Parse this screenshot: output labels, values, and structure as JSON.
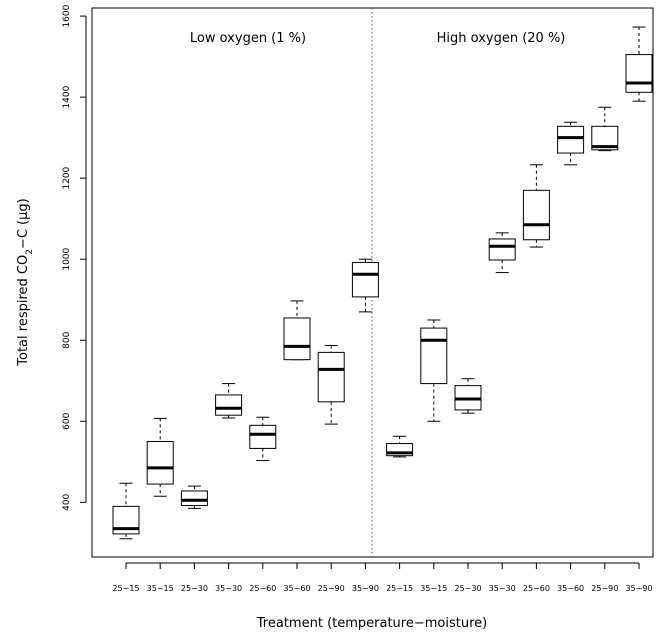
{
  "chart_data": {
    "type": "boxplot",
    "xlabel": "Treatment (temperature−moisture)",
    "ylabel_parts": [
      "Total respired CO",
      "2",
      "−C (μg)"
    ],
    "ylim": [
      265,
      1620
    ],
    "yticks": [
      400,
      600,
      800,
      1000,
      1200,
      1400,
      1600
    ],
    "grid": false,
    "panels": [
      {
        "label": "Low oxygen (1 %)"
      },
      {
        "label": "High oxygen (20 %)"
      }
    ],
    "categories": [
      "25−15",
      "35−15",
      "25−30",
      "35−30",
      "25−60",
      "35−60",
      "25−90",
      "35−90",
      "25−15",
      "35−15",
      "25−30",
      "35−30",
      "25−60",
      "35−60",
      "25−90",
      "35−90"
    ],
    "boxes": [
      {
        "group": "Low oxygen (1 %)",
        "treatment": "25−15",
        "min": 310,
        "q1": 322,
        "median": 335,
        "q3": 390,
        "max": 447
      },
      {
        "group": "Low oxygen (1 %)",
        "treatment": "35−15",
        "min": 415,
        "q1": 445,
        "median": 485,
        "q3": 550,
        "max": 607
      },
      {
        "group": "Low oxygen (1 %)",
        "treatment": "25−30",
        "min": 385,
        "q1": 392,
        "median": 405,
        "q3": 428,
        "max": 440
      },
      {
        "group": "Low oxygen (1 %)",
        "treatment": "35−30",
        "min": 608,
        "q1": 615,
        "median": 632,
        "q3": 665,
        "max": 693
      },
      {
        "group": "Low oxygen (1 %)",
        "treatment": "25−60",
        "min": 503,
        "q1": 533,
        "median": 568,
        "q3": 590,
        "max": 610
      },
      {
        "group": "Low oxygen (1 %)",
        "treatment": "35−60",
        "min": 752,
        "q1": 752,
        "median": 785,
        "q3": 855,
        "max": 897
      },
      {
        "group": "Low oxygen (1 %)",
        "treatment": "25−90",
        "min": 593,
        "q1": 648,
        "median": 728,
        "q3": 770,
        "max": 787
      },
      {
        "group": "Low oxygen (1 %)",
        "treatment": "35−90",
        "min": 870,
        "q1": 907,
        "median": 963,
        "q3": 992,
        "max": 1000
      },
      {
        "group": "High oxygen (20 %)",
        "treatment": "25−15",
        "min": 512,
        "q1": 515,
        "median": 522,
        "q3": 545,
        "max": 563
      },
      {
        "group": "High oxygen (20 %)",
        "treatment": "35−15",
        "min": 600,
        "q1": 693,
        "median": 800,
        "q3": 830,
        "max": 850
      },
      {
        "group": "High oxygen (20 %)",
        "treatment": "25−30",
        "min": 620,
        "q1": 628,
        "median": 655,
        "q3": 688,
        "max": 705
      },
      {
        "group": "High oxygen (20 %)",
        "treatment": "35−30",
        "min": 967,
        "q1": 998,
        "median": 1032,
        "q3": 1050,
        "max": 1065
      },
      {
        "group": "High oxygen (20 %)",
        "treatment": "25−60",
        "min": 1030,
        "q1": 1048,
        "median": 1085,
        "q3": 1170,
        "max": 1233
      },
      {
        "group": "High oxygen (20 %)",
        "treatment": "35−60",
        "min": 1233,
        "q1": 1262,
        "median": 1300,
        "q3": 1328,
        "max": 1338
      },
      {
        "group": "High oxygen (20 %)",
        "treatment": "25−90",
        "min": 1268,
        "q1": 1270,
        "median": 1278,
        "q3": 1328,
        "max": 1375
      },
      {
        "group": "High oxygen (20 %)",
        "treatment": "35−90",
        "min": 1390,
        "q1": 1412,
        "median": 1435,
        "q3": 1505,
        "max": 1573
      }
    ]
  }
}
